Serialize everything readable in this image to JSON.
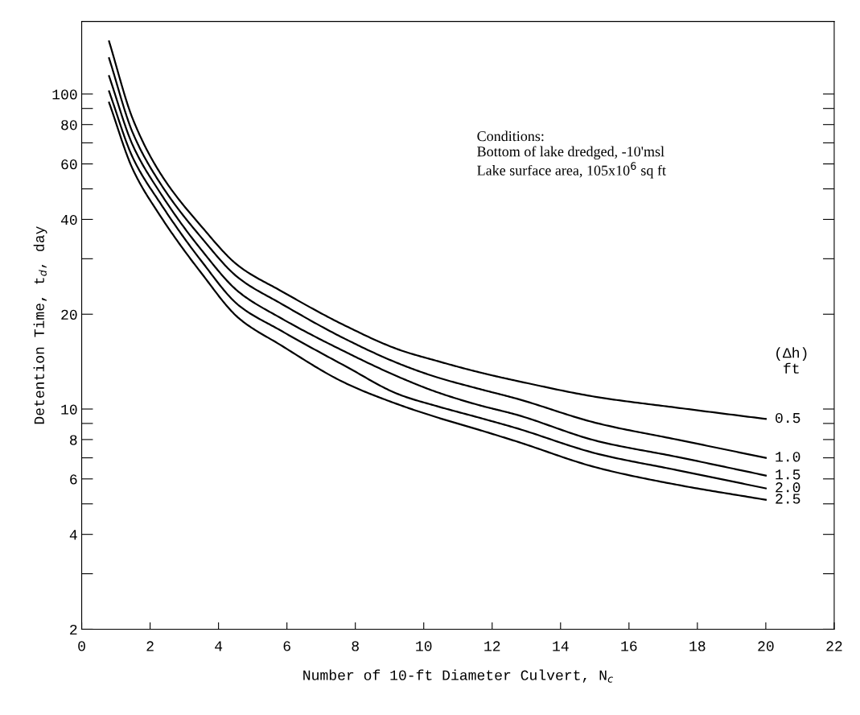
{
  "chart_data": {
    "type": "line",
    "xlabel": "Number of 10-ft Diameter Culvert, N$_{c}$",
    "ylabel": "Detention Time, t$_{d}$, day",
    "legend_title": "(Δh)\nft",
    "annotations": [
      "Conditions:\nBottom of lake dredged, -10'msl\nLake surface area, 105x10$^{6}$ sq ft"
    ],
    "x": [
      0.8,
      1.5,
      2.3,
      3.5,
      4.6,
      5.8,
      7.7,
      9.3,
      10.4,
      11.6,
      12.7,
      15.1,
      17.4,
      20.0
    ],
    "series": [
      {
        "name": "0.5",
        "color": "#000000",
        "values": [
          147,
          83,
          56,
          38,
          28.4,
          23.8,
          18.4,
          15.4,
          14.2,
          13.1,
          12.3,
          10.9,
          10.1,
          9.3
        ]
      },
      {
        "name": "1.0",
        "color": "#000000",
        "values": [
          130,
          75,
          52,
          35,
          26,
          21.7,
          16.7,
          13.9,
          12.6,
          11.6,
          10.8,
          9.0,
          8.0,
          7.0
        ]
      },
      {
        "name": "1.5",
        "color": "#000000",
        "values": [
          114,
          68.5,
          48.5,
          32,
          23.5,
          19.5,
          15.2,
          12.6,
          11.3,
          10.3,
          9.6,
          7.9,
          7.05,
          6.15
        ]
      },
      {
        "name": "2.0",
        "color": "#000000",
        "values": [
          102,
          62.6,
          45,
          29.5,
          21.3,
          17.8,
          13.7,
          11.1,
          10.2,
          9.4,
          8.7,
          7.2,
          6.4,
          5.6
        ]
      },
      {
        "name": "2.5",
        "color": "#000000",
        "values": [
          94,
          57.5,
          41,
          27,
          19.4,
          16.0,
          12.1,
          10.3,
          9.4,
          8.6,
          7.9,
          6.5,
          5.75,
          5.15
        ]
      }
    ],
    "log": "y",
    "xlim": [
      0,
      22
    ],
    "xticks": [
      0,
      2,
      4,
      6,
      8,
      10,
      12,
      14,
      16,
      18,
      20,
      22
    ],
    "ylim": [
      2,
      170
    ],
    "yticks": [
      2,
      {
        "value": 3,
        "label": null
      },
      4,
      {
        "value": 5,
        "label": null
      },
      6,
      {
        "value": 7,
        "label": null
      },
      8,
      {
        "value": 9,
        "label": null
      },
      10,
      20,
      {
        "value": 30,
        "label": null
      },
      40,
      {
        "value": 50,
        "label": null
      },
      60,
      {
        "value": 70,
        "label": null
      },
      80,
      {
        "value": 90,
        "label": null
      },
      100
    ],
    "grid": false,
    "legend": "right",
    "line_style": "solid"
  }
}
